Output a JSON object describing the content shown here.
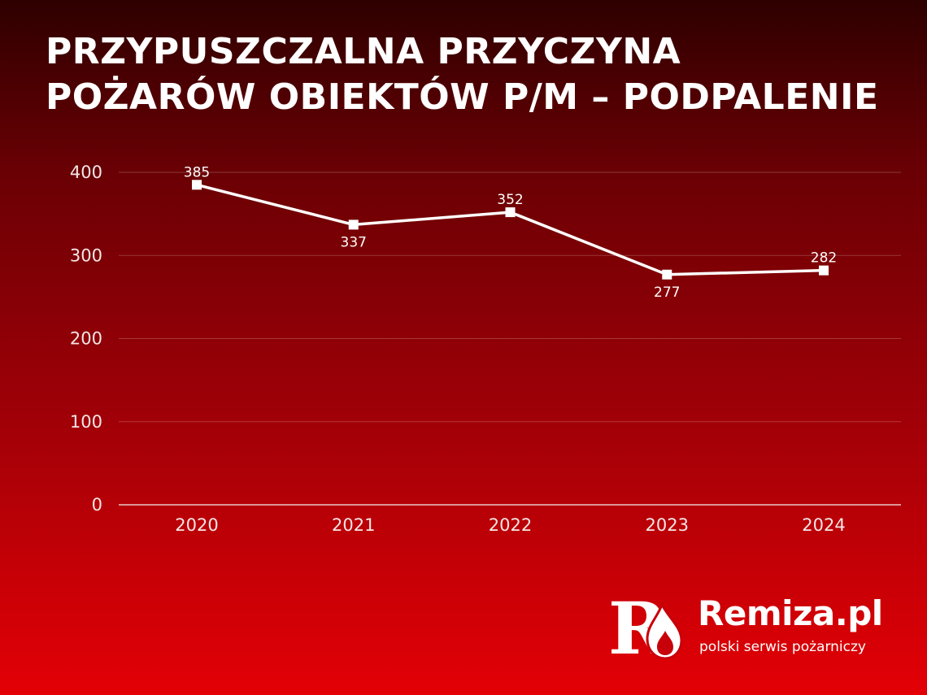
{
  "title": {
    "line1": "PRZYPUSZCZALNA PRZYCZYNA",
    "line2": "POŻARÓW OBIEKTÓW P/M – PODPALENIE"
  },
  "chart_data": {
    "type": "line",
    "categories": [
      "2020",
      "2021",
      "2022",
      "2023",
      "2024"
    ],
    "values": [
      385,
      337,
      352,
      277,
      282
    ],
    "y_ticks": [
      "0",
      "100",
      "200",
      "300",
      "400"
    ],
    "ylim": [
      0,
      400
    ],
    "grid": true,
    "data_labels": true,
    "line_color": "#ffffff",
    "marker": "square"
  },
  "brand": {
    "name": "Remiza.pl",
    "tagline": "polski serwis pożarniczy",
    "logo_letter": "R"
  },
  "colors": {
    "background_top": "#2e0000",
    "background_bottom": "#e30006",
    "text": "#ffffff"
  }
}
